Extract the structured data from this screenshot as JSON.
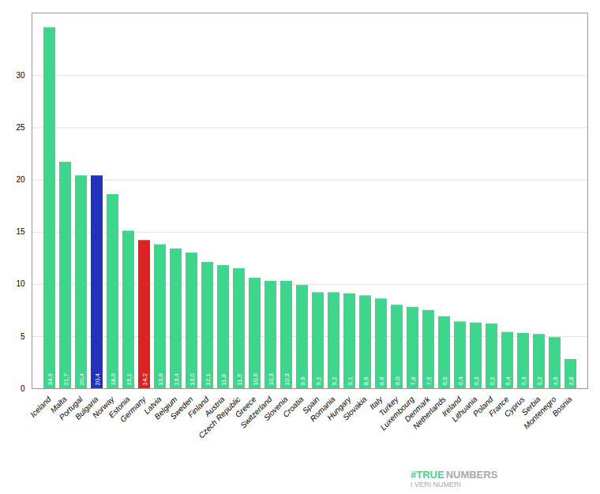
{
  "chart_data": {
    "type": "bar",
    "categories": [
      "Iceland",
      "Malta",
      "Portugal",
      "Bulgaria",
      "Norway",
      "Estonia",
      "Germany",
      "Latvia",
      "Belgium",
      "Sweden",
      "Finland",
      "Austria",
      "Czech Republic",
      "Greece",
      "Switzerland",
      "Slovenia",
      "Croatia",
      "Spain",
      "Romania",
      "Hungary",
      "Slovakia",
      "Italy",
      "Turkey",
      "Luxembourg",
      "Denmark",
      "Netherlands",
      "Ireland",
      "Lithuania",
      "Poland",
      "France",
      "Cyprus",
      "Serbia",
      "Montenegro",
      "Bosnia"
    ],
    "values": [
      34.6,
      21.7,
      20.4,
      20.4,
      18.6,
      15.1,
      14.2,
      13.8,
      13.4,
      13.0,
      12.1,
      11.8,
      11.5,
      10.6,
      10.3,
      10.3,
      9.9,
      9.2,
      9.2,
      9.1,
      8.9,
      8.6,
      8.0,
      7.8,
      7.5,
      6.9,
      6.4,
      6.3,
      6.2,
      5.4,
      5.3,
      5.2,
      4.9,
      2.8
    ],
    "value_labels": [
      "34,6",
      "21,7",
      "20,4",
      "20,4",
      "18,6",
      "15,1",
      "14,2",
      "13,8",
      "13,4",
      "13,0",
      "12,1",
      "11,8",
      "11,5",
      "10,6",
      "10,3",
      "10,3",
      "9,9",
      "9,2",
      "9,2",
      "9,1",
      "8,9",
      "8,6",
      "8,0",
      "7,8",
      "7,5",
      "6,9",
      "6,4",
      "6,3",
      "6,2",
      "5,4",
      "5,3",
      "5,2",
      "4,9",
      "2,8"
    ],
    "colors": [
      "#3dd68c",
      "#3dd68c",
      "#3dd68c",
      "#2233bb",
      "#3dd68c",
      "#3dd68c",
      "#dd2222",
      "#3dd68c",
      "#3dd68c",
      "#3dd68c",
      "#3dd68c",
      "#3dd68c",
      "#3dd68c",
      "#3dd68c",
      "#3dd68c",
      "#3dd68c",
      "#3dd68c",
      "#3dd68c",
      "#3dd68c",
      "#3dd68c",
      "#3dd68c",
      "#3dd68c",
      "#3dd68c",
      "#3dd68c",
      "#3dd68c",
      "#3dd68c",
      "#3dd68c",
      "#3dd68c",
      "#3dd68c",
      "#3dd68c",
      "#3dd68c",
      "#3dd68c",
      "#3dd68c",
      "#3dd68c"
    ],
    "ylim": [
      0,
      36
    ],
    "yticks": [
      0,
      5,
      10,
      15,
      20,
      25,
      30
    ],
    "grid": true,
    "data_labels": true,
    "annotations": [
      {
        "text": "#TRUE",
        "color": "#3dd68c"
      },
      {
        "text": "NUMBERS",
        "color": "#aaaaaa"
      },
      {
        "text": "I VERI NUMERI",
        "color": "#aaaaaa"
      }
    ]
  }
}
